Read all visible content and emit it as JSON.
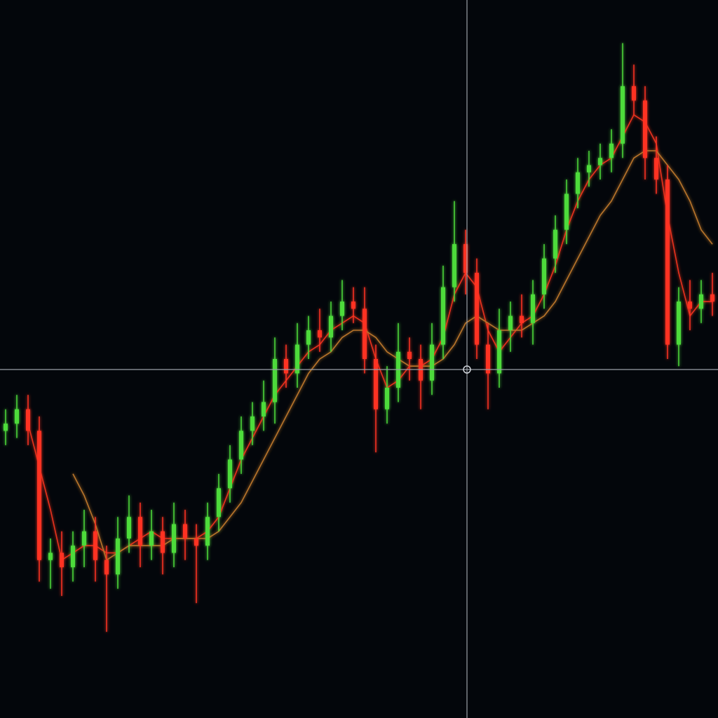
{
  "chart_data": {
    "type": "candlestick",
    "ylim": [
      0,
      100
    ],
    "up_color": "#4ddb3a",
    "down_color": "#ff3322",
    "open": [
      40,
      41,
      43,
      40,
      22,
      23,
      21,
      24,
      26,
      22,
      20,
      25,
      28,
      24,
      26,
      23,
      27,
      25,
      24,
      28,
      32,
      36,
      40,
      42,
      44,
      50,
      48,
      52,
      54,
      53,
      56,
      58,
      57,
      50,
      43,
      46,
      51,
      50,
      47,
      52,
      60,
      66,
      62,
      52,
      48,
      54,
      56,
      55,
      59,
      64,
      68,
      73,
      76,
      77,
      78,
      80,
      88,
      86,
      78,
      75,
      52,
      58,
      57,
      59
    ],
    "high": [
      43,
      45,
      45,
      42,
      25,
      26,
      26,
      29,
      28,
      24,
      28,
      31,
      30,
      29,
      28,
      30,
      29,
      27,
      30,
      34,
      38,
      42,
      44,
      47,
      53,
      52,
      55,
      56,
      57,
      58,
      61,
      60,
      60,
      52,
      49,
      55,
      53,
      52,
      55,
      63,
      72,
      68,
      64,
      55,
      57,
      58,
      59,
      61,
      66,
      70,
      75,
      78,
      79,
      80,
      82,
      94,
      91,
      88,
      81,
      77,
      60,
      61,
      61,
      62
    ],
    "low": [
      38,
      39,
      38,
      19,
      18,
      17,
      19,
      21,
      19,
      12,
      18,
      23,
      21,
      22,
      20,
      21,
      22,
      16,
      22,
      26,
      30,
      34,
      38,
      40,
      41,
      46,
      46,
      50,
      51,
      51,
      54,
      55,
      48,
      37,
      41,
      44,
      47,
      43,
      45,
      50,
      58,
      59,
      50,
      43,
      46,
      51,
      53,
      52,
      57,
      62,
      66,
      71,
      74,
      75,
      76,
      78,
      84,
      75,
      73,
      50,
      49,
      54,
      55,
      56
    ],
    "close": [
      41,
      43,
      40,
      22,
      23,
      21,
      24,
      26,
      22,
      20,
      25,
      28,
      24,
      26,
      23,
      27,
      25,
      24,
      28,
      32,
      36,
      40,
      42,
      44,
      50,
      48,
      52,
      54,
      53,
      56,
      58,
      57,
      50,
      43,
      46,
      51,
      50,
      47,
      52,
      60,
      66,
      62,
      52,
      48,
      54,
      56,
      55,
      59,
      64,
      68,
      73,
      76,
      77,
      78,
      80,
      88,
      86,
      78,
      75,
      52,
      58,
      57,
      59,
      58
    ],
    "lines": [
      {
        "color": "#e8321e",
        "values": [
          null,
          null,
          41,
          35,
          29,
          22,
          23,
          24,
          24,
          23,
          23,
          24,
          25,
          26,
          25,
          25,
          25,
          25,
          26,
          28,
          32,
          36,
          39,
          42,
          45,
          47,
          49,
          51,
          52,
          54,
          55,
          56,
          55,
          50,
          46,
          47,
          49,
          49,
          50,
          53,
          59,
          62,
          60,
          54,
          51,
          53,
          55,
          56,
          59,
          63,
          68,
          72,
          75,
          77,
          78,
          81,
          84,
          83,
          80,
          70,
          62,
          56,
          58,
          58
        ]
      },
      {
        "color": "#b8742a",
        "values": [
          null,
          null,
          null,
          null,
          null,
          null,
          34,
          31,
          27,
          22,
          23,
          24,
          24,
          24,
          24,
          25,
          25,
          25,
          25,
          26,
          28,
          30,
          33,
          36,
          39,
          42,
          45,
          48,
          50,
          51,
          53,
          54,
          54,
          53,
          51,
          50,
          49,
          49,
          49,
          50,
          52,
          55,
          56,
          55,
          54,
          54,
          54,
          55,
          56,
          58,
          61,
          64,
          67,
          70,
          72,
          75,
          78,
          79,
          79,
          77,
          75,
          72,
          68,
          66
        ]
      }
    ]
  }
}
